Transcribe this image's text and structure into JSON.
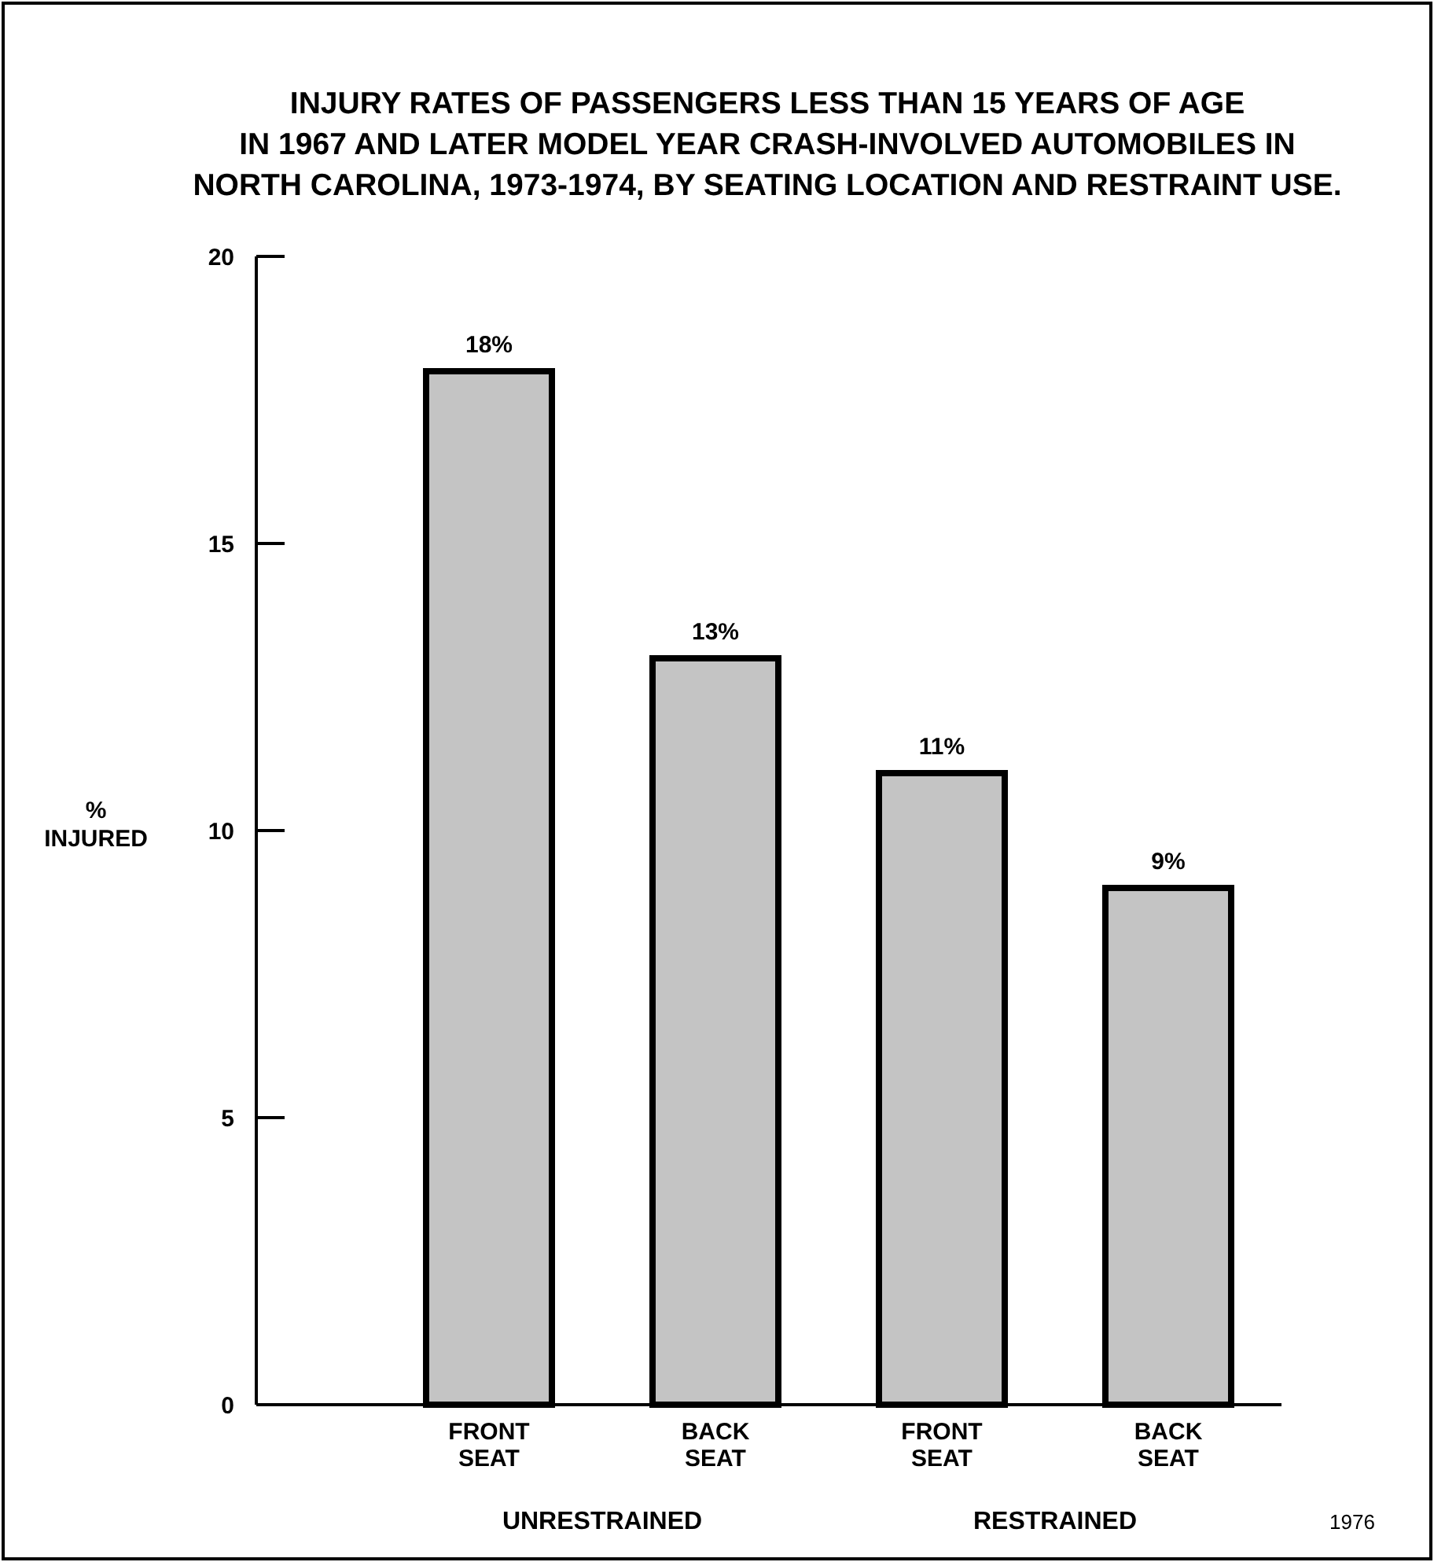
{
  "chart_data": {
    "type": "bar",
    "title": "INJURY RATES OF PASSENGERS LESS THAN 15 YEARS OF AGE\nIN 1967 AND LATER MODEL YEAR CRASH-INVOLVED AUTOMOBILES IN\nNORTH CAROLINA, 1973-1974, BY SEATING LOCATION AND RESTRAINT USE.",
    "ylabel": "%\nINJURED",
    "categories": [
      "FRONT\nSEAT",
      "BACK\nSEAT",
      "FRONT\nSEAT",
      "BACK\nSEAT"
    ],
    "values": [
      18,
      13,
      11,
      9
    ],
    "value_labels": [
      "18%",
      "13%",
      "11%",
      "9%"
    ],
    "color": "#c4c4c4",
    "ylim": [
      0,
      20
    ],
    "yticks": [
      0,
      5,
      10,
      15,
      20
    ],
    "annotations": [
      "UNRESTRAINED",
      "RESTRAINED",
      "1976"
    ]
  }
}
